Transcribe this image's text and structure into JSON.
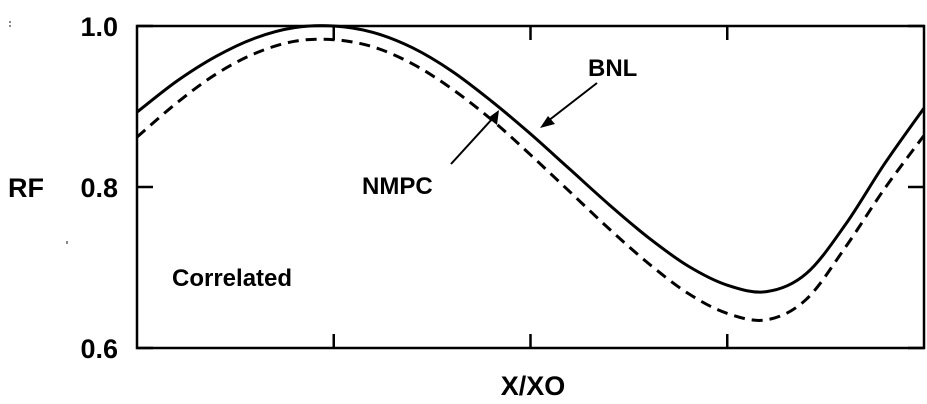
{
  "chart_data": {
    "type": "line",
    "xlabel": "X/XO",
    "ylabel": "RF",
    "ylim": [
      0.6,
      1.0
    ],
    "xlim": [
      0,
      1
    ],
    "yticks": [
      {
        "value": 0.6,
        "label": "0.6"
      },
      {
        "value": 0.8,
        "label": "0.8"
      },
      {
        "value": 1.0,
        "label": "1.0"
      }
    ],
    "grid": false,
    "series": [
      {
        "name": "BNL",
        "style": "solid",
        "x": [
          0,
          0.05,
          0.1,
          0.15,
          0.2,
          0.25,
          0.3,
          0.35,
          0.4,
          0.45,
          0.5,
          0.55,
          0.6,
          0.65,
          0.7,
          0.75,
          0.8,
          0.85,
          0.9,
          0.95,
          1.0
        ],
        "values": [
          0.893,
          0.931,
          0.962,
          0.985,
          0.998,
          1.0,
          0.992,
          0.973,
          0.944,
          0.907,
          0.866,
          0.822,
          0.778,
          0.737,
          0.702,
          0.678,
          0.67,
          0.692,
          0.753,
          0.829,
          0.898
        ]
      },
      {
        "name": "NMPC",
        "style": "dashed",
        "x": [
          0,
          0.05,
          0.1,
          0.15,
          0.2,
          0.25,
          0.3,
          0.35,
          0.4,
          0.45,
          0.5,
          0.55,
          0.6,
          0.65,
          0.7,
          0.75,
          0.8,
          0.85,
          0.9,
          0.95,
          1.0
        ],
        "values": [
          0.862,
          0.904,
          0.94,
          0.966,
          0.981,
          0.983,
          0.974,
          0.953,
          0.922,
          0.884,
          0.84,
          0.794,
          0.748,
          0.705,
          0.668,
          0.643,
          0.635,
          0.66,
          0.725,
          0.798,
          0.864
        ]
      }
    ],
    "annotations": [
      {
        "text": "BNL",
        "target_series": "BNL",
        "target_x": 0.5
      },
      {
        "text": "NMPC",
        "target_series": "NMPC",
        "target_x": 0.45
      },
      {
        "text": "Correlated"
      }
    ]
  }
}
